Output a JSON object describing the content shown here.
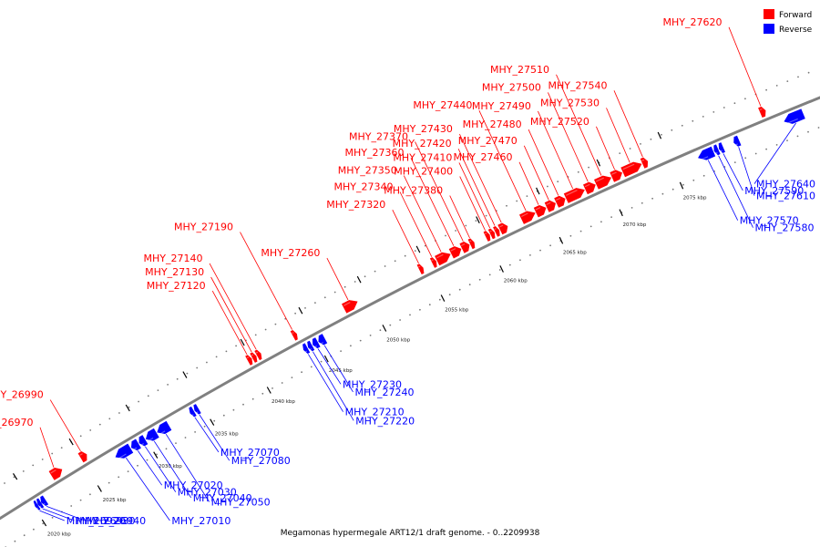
{
  "caption": "Megamonas hypermegale ART12/1 draft genome. - 0..2209938",
  "colors": {
    "forward": "#ff0000",
    "reverse": "#0000ff",
    "backbone": "#808080"
  },
  "legend": [
    {
      "label": "Forward",
      "color": "#ff0000"
    },
    {
      "label": "Reverse",
      "color": "#0000ff"
    }
  ],
  "tick_unit": "kbp",
  "ticks": [
    2020,
    2025,
    2030,
    2035,
    2040,
    2045,
    2050,
    2055,
    2060,
    2065,
    2070,
    2075
  ],
  "genes": [
    {
      "name": "MHY_26920",
      "strand": "reverse",
      "start_kbp": 2020.1,
      "end_kbp": 2020.3
    },
    {
      "name": "MHY_26930",
      "strand": "reverse",
      "start_kbp": 2020.35,
      "end_kbp": 2020.6
    },
    {
      "name": "MHY_26940",
      "strand": "reverse",
      "start_kbp": 2020.65,
      "end_kbp": 2021.0
    },
    {
      "name": "MHY_26970",
      "strand": "forward",
      "start_kbp": 2022.4,
      "end_kbp": 2023.3
    },
    {
      "name": "MHY_26990",
      "strand": "forward",
      "start_kbp": 2025.0,
      "end_kbp": 2025.5
    },
    {
      "name": "MHY_27010",
      "strand": "reverse",
      "start_kbp": 2027.3,
      "end_kbp": 2028.6
    },
    {
      "name": "MHY_27020",
      "strand": "reverse",
      "start_kbp": 2028.7,
      "end_kbp": 2029.3
    },
    {
      "name": "MHY_27030",
      "strand": "reverse",
      "start_kbp": 2029.4,
      "end_kbp": 2029.9
    },
    {
      "name": "MHY_27040",
      "strand": "reverse",
      "start_kbp": 2030.0,
      "end_kbp": 2030.9
    },
    {
      "name": "MHY_27050",
      "strand": "reverse",
      "start_kbp": 2031.0,
      "end_kbp": 2032.0
    },
    {
      "name": "MHY_27070",
      "strand": "reverse",
      "start_kbp": 2033.9,
      "end_kbp": 2034.2
    },
    {
      "name": "MHY_27080",
      "strand": "reverse",
      "start_kbp": 2034.3,
      "end_kbp": 2034.6
    },
    {
      "name": "MHY_27120",
      "strand": "forward",
      "start_kbp": 2039.7,
      "end_kbp": 2040.0
    },
    {
      "name": "MHY_27130",
      "strand": "forward",
      "start_kbp": 2040.1,
      "end_kbp": 2040.4
    },
    {
      "name": "MHY_27140",
      "strand": "forward",
      "start_kbp": 2040.5,
      "end_kbp": 2040.8
    },
    {
      "name": "MHY_27190",
      "strand": "forward",
      "start_kbp": 2043.6,
      "end_kbp": 2043.9
    },
    {
      "name": "MHY_27210",
      "strand": "reverse",
      "start_kbp": 2043.8,
      "end_kbp": 2044.1
    },
    {
      "name": "MHY_27220",
      "strand": "reverse",
      "start_kbp": 2044.2,
      "end_kbp": 2044.5
    },
    {
      "name": "MHY_27230",
      "strand": "reverse",
      "start_kbp": 2044.6,
      "end_kbp": 2045.0
    },
    {
      "name": "MHY_27240",
      "strand": "reverse",
      "start_kbp": 2045.1,
      "end_kbp": 2045.6
    },
    {
      "name": "MHY_27260",
      "strand": "forward",
      "start_kbp": 2048.0,
      "end_kbp": 2049.1
    },
    {
      "name": "MHY_27320",
      "strand": "forward",
      "start_kbp": 2054.4,
      "end_kbp": 2054.7
    },
    {
      "name": "MHY_27340",
      "strand": "forward",
      "start_kbp": 2055.5,
      "end_kbp": 2055.8
    },
    {
      "name": "MHY_27350",
      "strand": "forward",
      "start_kbp": 2055.9,
      "end_kbp": 2057.0
    },
    {
      "name": "MHY_27360",
      "strand": "forward",
      "start_kbp": 2057.1,
      "end_kbp": 2057.9
    },
    {
      "name": "MHY_27370",
      "strand": "forward",
      "start_kbp": 2058.0,
      "end_kbp": 2058.6
    },
    {
      "name": "MHY_27380",
      "strand": "forward",
      "start_kbp": 2058.7,
      "end_kbp": 2059.0
    },
    {
      "name": "MHY_27400",
      "strand": "forward",
      "start_kbp": 2060.0,
      "end_kbp": 2060.3
    },
    {
      "name": "MHY_27410",
      "strand": "forward",
      "start_kbp": 2060.4,
      "end_kbp": 2060.7
    },
    {
      "name": "MHY_27420",
      "strand": "forward",
      "start_kbp": 2060.8,
      "end_kbp": 2061.1
    },
    {
      "name": "MHY_27430",
      "strand": "forward",
      "start_kbp": 2061.2,
      "end_kbp": 2061.8
    },
    {
      "name": "MHY_27440",
      "strand": "forward",
      "start_kbp": 2063.0,
      "end_kbp": 2064.1
    },
    {
      "name": "MHY_27460",
      "strand": "forward",
      "start_kbp": 2064.2,
      "end_kbp": 2065.0
    },
    {
      "name": "MHY_27470",
      "strand": "forward",
      "start_kbp": 2065.1,
      "end_kbp": 2065.8
    },
    {
      "name": "MHY_27480",
      "strand": "forward",
      "start_kbp": 2065.9,
      "end_kbp": 2066.6
    },
    {
      "name": "MHY_27490",
      "strand": "forward",
      "start_kbp": 2066.7,
      "end_kbp": 2068.2
    },
    {
      "name": "MHY_27500",
      "strand": "forward",
      "start_kbp": 2068.3,
      "end_kbp": 2069.1
    },
    {
      "name": "MHY_27510",
      "strand": "forward",
      "start_kbp": 2069.2,
      "end_kbp": 2070.4
    },
    {
      "name": "MHY_27520",
      "strand": "forward",
      "start_kbp": 2070.5,
      "end_kbp": 2071.3
    },
    {
      "name": "MHY_27530",
      "strand": "forward",
      "start_kbp": 2071.4,
      "end_kbp": 2072.9
    },
    {
      "name": "MHY_27540",
      "strand": "forward",
      "start_kbp": 2073.0,
      "end_kbp": 2073.4
    },
    {
      "name": "MHY_27570",
      "strand": "reverse",
      "start_kbp": 2077.0,
      "end_kbp": 2078.2
    },
    {
      "name": "MHY_27580",
      "strand": "reverse",
      "start_kbp": 2078.3,
      "end_kbp": 2078.6
    },
    {
      "name": "MHY_27590",
      "strand": "reverse",
      "start_kbp": 2078.7,
      "end_kbp": 2079.0
    },
    {
      "name": "MHY_27610",
      "strand": "reverse",
      "start_kbp": 2079.9,
      "end_kbp": 2080.3
    },
    {
      "name": "MHY_27620",
      "strand": "forward",
      "start_kbp": 2082.6,
      "end_kbp": 2083.0
    },
    {
      "name": "MHY_27640",
      "strand": "reverse",
      "start_kbp": 2084.0,
      "end_kbp": 2085.5
    }
  ]
}
